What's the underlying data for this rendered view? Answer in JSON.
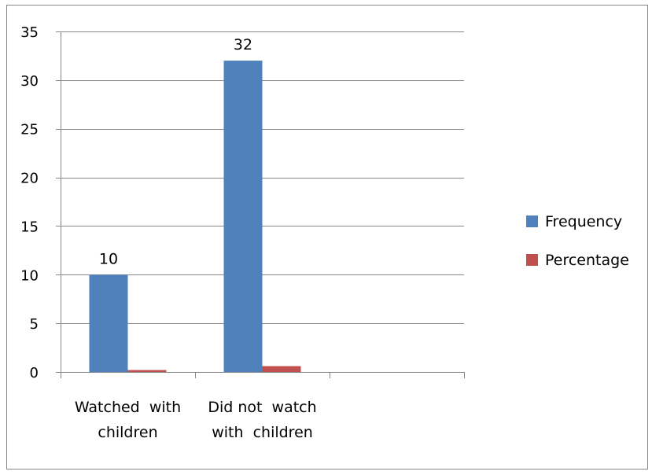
{
  "chart_data": {
    "type": "bar",
    "categories": [
      [
        "Watched  with",
        "children"
      ],
      [
        "Did not  watch",
        "with  children"
      ],
      [
        "",
        ""
      ]
    ],
    "series": [
      {
        "name": "Frequency",
        "color": "#4F81BD",
        "values": [
          10,
          32,
          null
        ],
        "labels": [
          "10",
          "32",
          ""
        ]
      },
      {
        "name": "Percentage",
        "color": "#C0504D",
        "values": [
          0.2,
          0.6,
          null
        ],
        "labels": [
          "",
          "",
          ""
        ]
      }
    ],
    "ylim": [
      0,
      35
    ],
    "yticks": [
      0,
      5,
      10,
      15,
      20,
      25,
      30,
      35
    ],
    "grid": true,
    "legend_position": "right"
  }
}
